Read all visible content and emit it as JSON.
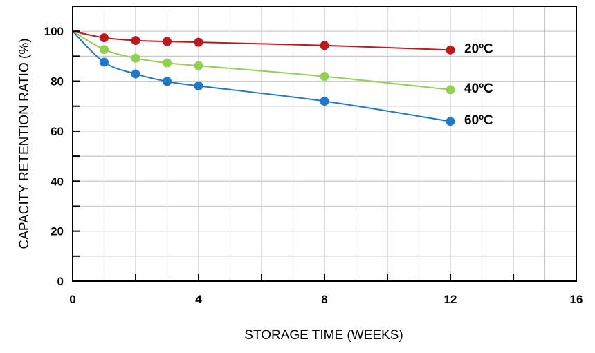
{
  "chart_data": {
    "type": "line",
    "xlabel": "STORAGE TIME (WEEKS)",
    "ylabel": "CAPACITY RETENTION RATIO (%)",
    "xlim": [
      0,
      16
    ],
    "ylim": [
      0,
      110
    ],
    "x_ticks": [
      0,
      4,
      8,
      12,
      16
    ],
    "x_tick_labels": [
      "0",
      "4",
      "8",
      "12",
      "16"
    ],
    "y_ticks": [
      0,
      20,
      40,
      60,
      80,
      100
    ],
    "y_tick_labels": [
      "0",
      "20",
      "40",
      "60",
      "80",
      "100"
    ],
    "grid": true,
    "series": [
      {
        "name": "20ºC",
        "color": "#c0171c",
        "x": [
          1,
          2,
          3,
          4,
          8,
          12
        ],
        "y": [
          97.4,
          96.3,
          95.9,
          95.6,
          94.3,
          92.5
        ]
      },
      {
        "name": "40ºC",
        "color": "#92d050",
        "x": [
          1,
          2,
          3,
          4,
          8,
          12
        ],
        "y": [
          92.7,
          89.2,
          87.3,
          86.2,
          81.9,
          76.6
        ]
      },
      {
        "name": "60ºC",
        "color": "#1f78c8",
        "x": [
          1,
          2,
          3,
          4,
          8,
          12
        ],
        "y": [
          87.6,
          82.9,
          79.9,
          78.1,
          72.0,
          63.9
        ]
      }
    ],
    "curve_start": {
      "x": 0,
      "y": 100
    }
  }
}
